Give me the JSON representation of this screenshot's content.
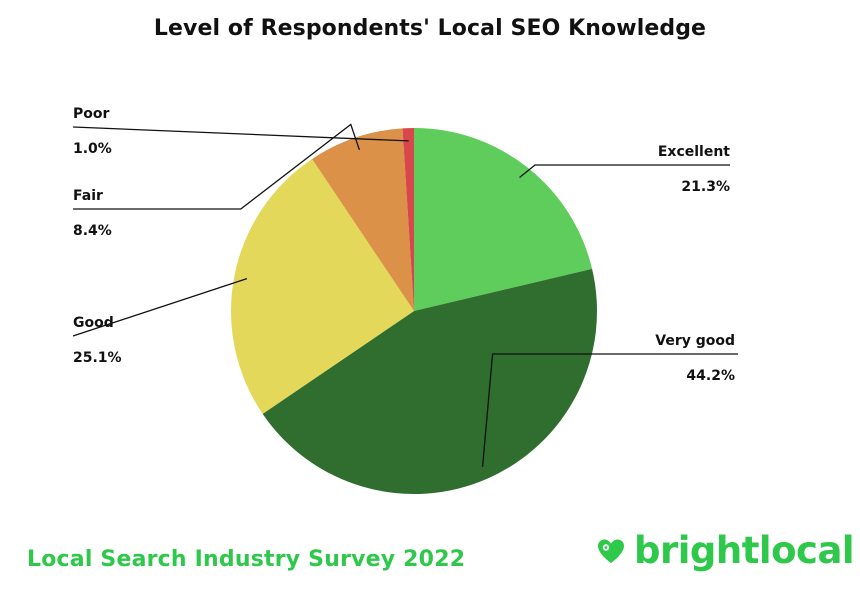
{
  "chart_data": {
    "type": "pie",
    "title": "Level of Respondents' Local SEO Knowledge",
    "slices": [
      {
        "label": "Excellent",
        "value": 21.3,
        "display": "21.3%",
        "color": "#5fcd5b"
      },
      {
        "label": "Very good",
        "value": 44.2,
        "display": "44.2%",
        "color": "#2f6e2f"
      },
      {
        "label": "Good",
        "value": 25.1,
        "display": "25.1%",
        "color": "#e4d85a"
      },
      {
        "label": "Fair",
        "value": 8.4,
        "display": "8.4%",
        "color": "#dc9149"
      },
      {
        "label": "Poor",
        "value": 1.0,
        "display": "1.0%",
        "color": "#d8474b"
      }
    ],
    "start": "top, clockwise"
  },
  "footer": {
    "survey": "Local Search Industry Survey 2022",
    "brand": "brightlocal"
  },
  "colors": {
    "accent": "#2ec84a",
    "text": "#111111"
  }
}
